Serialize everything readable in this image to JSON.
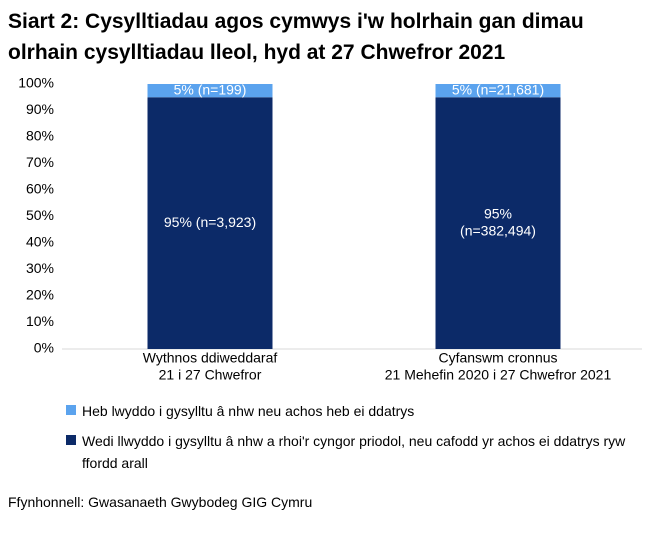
{
  "chart_data": {
    "type": "stacked_bar",
    "title": "Siart 2: Cysylltiadau agos cymwys i'w holrhain gan dimau olrhain cysylltiadau lleol, hyd at 27 Chwefror 2021",
    "categories": [
      "Wythnos ddiweddaraf\n21 i 27 Chwefror",
      "Cyfanswm cronnus\n21 Mehefin 2020 i 27 Chwefror 2021"
    ],
    "series": [
      {
        "name": "Heb lwyddo i gysylltu â nhw neu achos heb ei ddatrys",
        "color": "#5ba3ee",
        "values": [
          5,
          5
        ],
        "value_labels": [
          "5% (n=199)",
          "5% (n=21,681)"
        ]
      },
      {
        "name": "Wedi llwyddo i gysylltu â nhw a rhoi'r cyngor priodol, neu cafodd yr achos ei ddatrys ryw ffordd arall",
        "color": "#0c2a68",
        "values": [
          95,
          95
        ],
        "value_labels": [
          "95% (n=3,923)",
          "95%\n(n=382,494)"
        ]
      }
    ],
    "ylim": [
      0,
      100
    ],
    "yticks": [
      {
        "value": 0,
        "label": "0%"
      },
      {
        "value": 10,
        "label": "10%"
      },
      {
        "value": 20,
        "label": "20%"
      },
      {
        "value": 30,
        "label": "30%"
      },
      {
        "value": 40,
        "label": "40%"
      },
      {
        "value": 50,
        "label": "50%"
      },
      {
        "value": 60,
        "label": "60%"
      },
      {
        "value": 70,
        "label": "70%"
      },
      {
        "value": 80,
        "label": "80%"
      },
      {
        "value": 90,
        "label": "90%"
      },
      {
        "value": 100,
        "label": "100%"
      }
    ],
    "source": "Ffynhonnell: Gwasanaeth Gwybodeg GIG Cymru"
  }
}
